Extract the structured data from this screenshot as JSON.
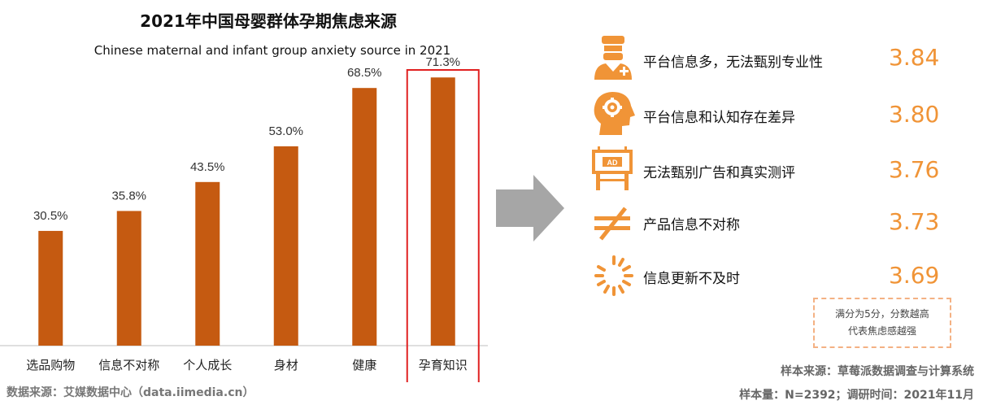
{
  "chart_data": {
    "type": "bar",
    "title": "2021年中国母婴群体孕期焦虑来源",
    "subtitle": "Chinese maternal and infant group anxiety source in 2021",
    "categories": [
      "选品购物",
      "信息不对称",
      "个人成长",
      "身材",
      "健康",
      "孕育知识"
    ],
    "values": [
      30.5,
      35.8,
      43.5,
      53.0,
      68.5,
      71.3
    ],
    "value_labels": [
      "30.5%",
      "35.8%",
      "43.5%",
      "53.0%",
      "68.5%",
      "71.3%"
    ],
    "unit": "%",
    "highlighted_category": "孕育知识",
    "ylim": [
      0,
      80
    ],
    "grid": false,
    "bar_color": "#C55A11",
    "highlight_color": "#E02020"
  },
  "source_left": "数据来源：艾媒数据中心（data.iimedia.cn）",
  "ratings": {
    "accent": "#F09437",
    "items": [
      {
        "label": "平台信息多，无法甄别专业性",
        "score": "3.84",
        "icon": "doctor-icon"
      },
      {
        "label": "平台信息和认知存在差异",
        "score": "3.80",
        "icon": "head-gear-icon"
      },
      {
        "label": "无法甄别广告和真实测评",
        "score": "3.76",
        "icon": "billboard-ad-icon",
        "icon_text": "AD"
      },
      {
        "label": "产品信息不对称",
        "score": "3.73",
        "icon": "not-equal-icon"
      },
      {
        "label": "信息更新不及时",
        "score": "3.69",
        "icon": "loading-spinner-icon"
      }
    ],
    "note_line1": "满分为5分，分数越高",
    "note_line2": "代表焦虑感越强"
  },
  "source_right_line1": "样本来源：草莓派数据调查与计算系统",
  "source_right_line2": "样本量：N=2392；调研时间：2021年11月"
}
